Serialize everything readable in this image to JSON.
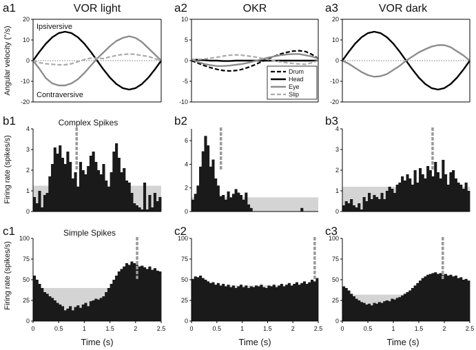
{
  "column_titles": [
    "VOR light",
    "OKR",
    "VOR dark"
  ],
  "row_subtitles": {
    "b": "Complex Spikes",
    "c": "Simple Spikes"
  },
  "panel_labels": {
    "a": [
      "a1",
      "a2",
      "a3"
    ],
    "b": [
      "b1",
      "b2",
      "b3"
    ],
    "c": [
      "c1",
      "c2",
      "c3"
    ]
  },
  "axis_labels": {
    "a_y": "Angular velocity (°/s)",
    "b_y": "Firing rate (spikes/s)",
    "c_y": "Firing rate (spikes/s)",
    "x": "Time (s)"
  },
  "annotations": {
    "ipsiversive": "Ipsiversive",
    "contraversive": "Contraversive"
  },
  "legend": [
    "Drum",
    "Head",
    "Eye",
    "Slip"
  ],
  "colors": {
    "bar": "#1a1a1a",
    "shade": "#d4d4d4",
    "gray_trace": "#8c8c8c",
    "marker": "#9a9a9a"
  },
  "chart_data": [
    {
      "panel": "a1",
      "type": "line",
      "title": "VOR light",
      "xlim": [
        0,
        2.5
      ],
      "ylim": [
        -20,
        20
      ],
      "yticks": [
        -20,
        -10,
        0,
        10,
        20
      ],
      "xticks": [],
      "x": [
        0,
        0.125,
        0.25,
        0.375,
        0.5,
        0.625,
        0.75,
        0.875,
        1.0,
        1.125,
        1.25,
        1.375,
        1.5,
        1.625,
        1.75,
        1.875,
        2.0,
        2.125,
        2.25,
        2.375,
        2.5
      ],
      "series": [
        {
          "name": "Head",
          "values": [
            0,
            4.3,
            8.2,
            11.3,
            13.3,
            14,
            13.3,
            11.3,
            8.2,
            4.3,
            0,
            -4.3,
            -8.2,
            -11.3,
            -13.3,
            -14,
            -13.3,
            -11.3,
            -8.2,
            -4.3,
            0
          ]
        },
        {
          "name": "Eye",
          "values": [
            0,
            -4,
            -8.5,
            -11,
            -12,
            -12,
            -11,
            -9,
            -6,
            -2.5,
            1,
            4,
            7,
            9.5,
            11,
            11.8,
            11,
            9,
            6,
            3,
            0
          ]
        },
        {
          "name": "Slip",
          "values": [
            0,
            -1,
            -1.5,
            -1.8,
            -2,
            -2,
            -1.5,
            -0.5,
            0.5,
            1.2,
            1.2,
            1,
            1.8,
            2.5,
            3,
            3.2,
            3,
            2.5,
            2,
            1,
            0
          ]
        }
      ]
    },
    {
      "panel": "a2",
      "type": "line",
      "title": "OKR",
      "xlim": [
        0,
        2.5
      ],
      "ylim": [
        -10,
        10
      ],
      "yticks": [
        -10,
        -5,
        0,
        5,
        10
      ],
      "xticks": [],
      "x": [
        0,
        0.125,
        0.25,
        0.375,
        0.5,
        0.625,
        0.75,
        0.875,
        1.0,
        1.125,
        1.25,
        1.375,
        1.5,
        1.625,
        1.75,
        1.875,
        2.0,
        2.125,
        2.25,
        2.375,
        2.5
      ],
      "series": [
        {
          "name": "Drum",
          "values": [
            0,
            -0.6,
            -1.2,
            -1.7,
            -2.1,
            -2.4,
            -2.5,
            -2.4,
            -2.1,
            -1.6,
            -1.0,
            -0.3,
            0.4,
            1.0,
            1.6,
            2.0,
            2.3,
            2.4,
            2.2,
            1.5,
            0.5
          ]
        },
        {
          "name": "Head",
          "values": [
            0.3,
            0.2,
            0.1,
            0,
            0,
            -0.1,
            -0.1,
            0,
            0,
            0,
            0,
            0,
            0,
            0,
            0,
            0,
            0,
            0,
            0,
            0,
            0
          ]
        },
        {
          "name": "Eye",
          "values": [
            0.3,
            -0.3,
            -0.8,
            -1.1,
            -1.3,
            -1.3,
            -1.2,
            -1.0,
            -0.8,
            -0.5,
            -0.1,
            0.3,
            0.7,
            1.0,
            1.3,
            1.5,
            1.6,
            1.6,
            1.3,
            1.0,
            0.5
          ]
        },
        {
          "name": "Slip",
          "values": [
            0.3,
            0.3,
            0.4,
            0.6,
            0.8,
            1.1,
            1.3,
            1.4,
            1.3,
            1.1,
            0.9,
            0.6,
            0.3,
            0,
            -0.3,
            -0.5,
            -0.7,
            -0.8,
            -0.9,
            -0.5,
            0
          ]
        }
      ],
      "legend_position": "bottom-right"
    },
    {
      "panel": "a3",
      "type": "line",
      "title": "VOR dark",
      "xlim": [
        0,
        2.5
      ],
      "ylim": [
        -20,
        20
      ],
      "yticks": [
        -20,
        -10,
        0,
        10,
        20
      ],
      "xticks": [],
      "x": [
        0,
        0.125,
        0.25,
        0.375,
        0.5,
        0.625,
        0.75,
        0.875,
        1.0,
        1.125,
        1.25,
        1.375,
        1.5,
        1.625,
        1.75,
        1.875,
        2.0,
        2.125,
        2.25,
        2.375,
        2.5
      ],
      "series": [
        {
          "name": "Head",
          "values": [
            0,
            4.3,
            8.2,
            11.3,
            13.3,
            14,
            13.3,
            11.3,
            8.2,
            4.3,
            0,
            -4.3,
            -8.2,
            -11.3,
            -13.3,
            -14,
            -13.3,
            -11.3,
            -8.2,
            -4.3,
            0
          ]
        },
        {
          "name": "Eye",
          "values": [
            0,
            -1.5,
            -3.5,
            -5.5,
            -7,
            -7.8,
            -7.5,
            -6.5,
            -4.5,
            -2.5,
            0,
            2,
            4,
            5.5,
            6.8,
            7.5,
            7.5,
            6.5,
            4.5,
            2.5,
            0
          ]
        }
      ]
    },
    {
      "panel": "b1",
      "type": "bar",
      "subtitle": "Complex Spikes",
      "xlim": [
        0,
        2.5
      ],
      "ylim": [
        0,
        4
      ],
      "yticks": [
        0,
        1,
        2,
        3,
        4
      ],
      "xticks": [],
      "bin_width": 0.05,
      "values": [
        0.7,
        0.4,
        1.0,
        0.2,
        0.8,
        0.9,
        1.7,
        2.3,
        3.1,
        2.8,
        3.2,
        2.6,
        2.3,
        2.9,
        2.4,
        1.6,
        1.9,
        1.2,
        2.4,
        2.0,
        1.8,
        2.2,
        2.7,
        2.9,
        2.4,
        2.0,
        1.8,
        2.3,
        1.5,
        1.2,
        1.9,
        2.9,
        3.3,
        2.6,
        1.9,
        2.1,
        1.5,
        1.4,
        0.9,
        0.4,
        0.3,
        0.2,
        0.1,
        1.4,
        0.1,
        0.8,
        0.2,
        0.9,
        0.5,
        0.7
      ],
      "shaded_threshold": 1.25,
      "marker_x": 0.85
    },
    {
      "panel": "b2",
      "type": "bar",
      "xlim": [
        0,
        2.5
      ],
      "ylim": [
        0,
        7
      ],
      "yticks": [
        0,
        2,
        4,
        6
      ],
      "xticks": [],
      "bin_width": 0.05,
      "values": [
        1.0,
        1.5,
        2.2,
        3.8,
        5.1,
        6.4,
        5.6,
        3.8,
        4.4,
        2.8,
        2.2,
        1.3,
        1.4,
        1.0,
        1.7,
        1.2,
        1.5,
        1.9,
        1.6,
        1.4,
        1.0,
        1.6,
        0.6,
        0.3,
        0,
        0,
        0,
        0,
        0,
        0,
        0,
        0,
        0,
        0,
        0,
        0,
        0,
        0,
        0,
        0,
        0,
        0,
        0,
        0.3,
        0,
        0,
        0,
        0,
        0,
        0
      ],
      "shaded_threshold": 1.2,
      "marker_x": 0.58
    },
    {
      "panel": "b3",
      "type": "bar",
      "xlim": [
        0,
        2.5
      ],
      "ylim": [
        0,
        4
      ],
      "yticks": [
        0,
        1,
        2,
        3,
        4
      ],
      "xticks": [],
      "bin_width": 0.05,
      "values": [
        0.3,
        0.5,
        0.4,
        0.6,
        0.3,
        0.2,
        0.4,
        0.1,
        0.7,
        0.5,
        0.9,
        0.6,
        0.8,
        0.7,
        0.6,
        0.9,
        0.6,
        1.0,
        1.2,
        1.1,
        0.9,
        1.3,
        1.4,
        1.7,
        1.5,
        1.8,
        1.6,
        1.3,
        2.0,
        1.4,
        2.1,
        1.8,
        1.6,
        2.2,
        2.0,
        1.7,
        2.4,
        1.9,
        1.6,
        2.5,
        1.8,
        1.3,
        1.9,
        2.0,
        1.6,
        1.4,
        1.3,
        1.1,
        1.4,
        1.0
      ],
      "shaded_threshold": 1.2,
      "marker_x": 1.77
    },
    {
      "panel": "c1",
      "type": "bar",
      "subtitle": "Simple Spikes",
      "xlim": [
        0,
        2.5
      ],
      "ylim": [
        0,
        100
      ],
      "yticks": [
        0,
        25,
        50,
        75,
        100
      ],
      "xticks": [
        0,
        0.5,
        1,
        1.5,
        2,
        2.5
      ],
      "xlabel": "Time (s)",
      "bin_width": 0.05,
      "values": [
        55,
        50,
        45,
        40,
        35,
        33,
        30,
        28,
        25,
        22,
        20,
        18,
        13,
        15,
        18,
        13,
        17,
        19,
        16,
        20,
        22,
        18,
        24,
        25,
        27,
        26,
        28,
        30,
        35,
        40,
        45,
        50,
        55,
        60,
        63,
        66,
        70,
        68,
        72,
        70,
        68,
        66,
        67,
        65,
        63,
        66,
        62,
        64,
        61,
        60
      ],
      "shaded_threshold": 40,
      "marker_x": 2.03
    },
    {
      "panel": "c2",
      "type": "bar",
      "xlim": [
        0,
        2.5
      ],
      "ylim": [
        0,
        100
      ],
      "yticks": [
        0,
        25,
        50,
        75,
        100
      ],
      "xticks": [
        0,
        0.5,
        1,
        1.5,
        2,
        2.5
      ],
      "xlabel": "Time (s)",
      "bin_width": 0.05,
      "values": [
        51,
        54,
        53,
        55,
        52,
        50,
        48,
        46,
        47,
        44,
        46,
        43,
        45,
        42,
        44,
        41,
        43,
        40,
        42,
        44,
        41,
        43,
        40,
        42,
        41,
        43,
        42,
        44,
        41,
        40,
        43,
        42,
        44,
        41,
        43,
        45,
        42,
        44,
        46,
        43,
        45,
        47,
        44,
        46,
        48,
        45,
        47,
        50,
        48,
        52
      ],
      "shaded_threshold": 43,
      "marker_x": 2.43
    },
    {
      "panel": "c3",
      "type": "bar",
      "xlim": [
        0,
        2.5
      ],
      "ylim": [
        0,
        100
      ],
      "yticks": [
        0,
        25,
        50,
        75,
        100
      ],
      "xticks": [
        0,
        0.5,
        1,
        1.5,
        2,
        2.5
      ],
      "xlabel": "Time (s)",
      "bin_width": 0.05,
      "values": [
        42,
        40,
        37,
        33,
        30,
        27,
        25,
        23,
        22,
        20,
        21,
        19,
        22,
        21,
        23,
        22,
        24,
        25,
        24,
        27,
        26,
        28,
        29,
        31,
        33,
        35,
        37,
        40,
        43,
        46,
        49,
        52,
        54,
        56,
        57,
        58,
        59,
        57,
        58,
        56,
        57,
        55,
        56,
        54,
        55,
        52,
        53,
        50,
        51,
        49
      ],
      "shaded_threshold": 32,
      "marker_x": 1.97
    }
  ]
}
